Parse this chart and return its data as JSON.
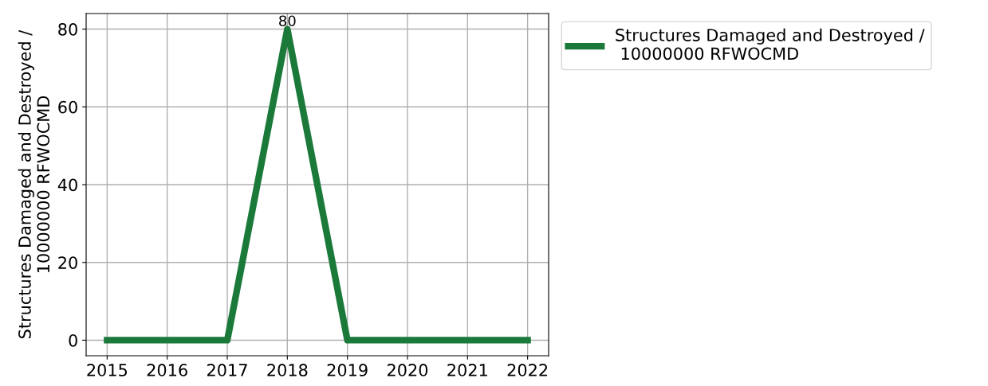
{
  "chart_data": {
    "type": "line",
    "ylabel": "Structures Damaged and Destroyed /\n10000000 RFWOCMD",
    "x": [
      2015,
      2016,
      2017,
      2018,
      2019,
      2020,
      2021,
      2022
    ],
    "series": [
      {
        "name": "Structures Damaged and Destroyed /\n 10000000 RFWOCMD",
        "color": "#1b7a3a",
        "values": [
          0,
          0,
          0,
          80,
          0,
          0,
          0,
          0
        ],
        "value_labels": [
          null,
          null,
          null,
          "80",
          null,
          null,
          null,
          null
        ]
      }
    ],
    "xlim": [
      2014.65,
      2022.35
    ],
    "xticks": [
      2015,
      2016,
      2017,
      2018,
      2019,
      2020,
      2021,
      2022
    ],
    "ylim": [
      -4,
      84
    ],
    "yticks": [
      0,
      20,
      40,
      60,
      80
    ],
    "grid": true,
    "legend": "top right",
    "marker": "none",
    "line_style": "solid"
  }
}
